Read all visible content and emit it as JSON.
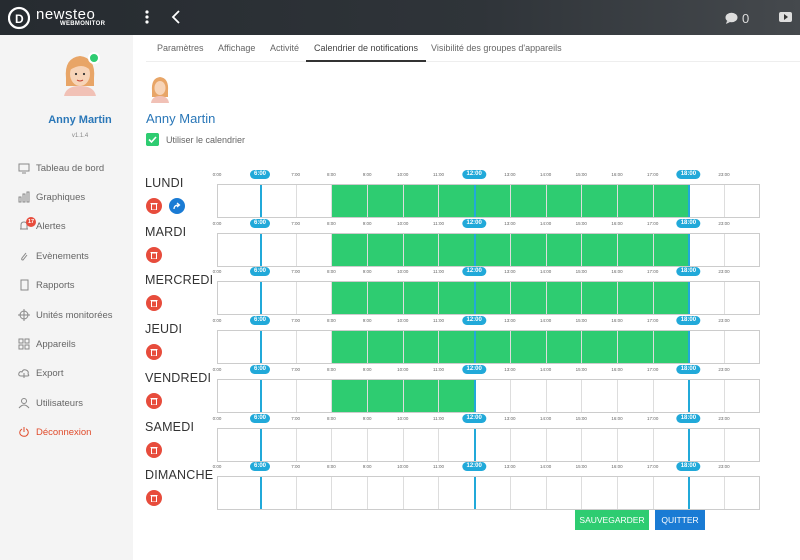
{
  "header": {
    "brand": "newsteo",
    "brand_sub": "WEBMONITOR",
    "chat_count": "0"
  },
  "sidebar": {
    "user_name": "Anny Martin",
    "version": "v1.1.4",
    "alert_badge": "17",
    "items": [
      {
        "label": "Tableau de bord",
        "icon": "monitor-icon"
      },
      {
        "label": "Graphiques",
        "icon": "bar-chart-icon"
      },
      {
        "label": "Alertes",
        "icon": "bell-icon"
      },
      {
        "label": "Evènements",
        "icon": "paperclip-icon"
      },
      {
        "label": "Rapports",
        "icon": "document-icon"
      },
      {
        "label": "Unités monitorées",
        "icon": "crosshair-icon"
      },
      {
        "label": "Appareils",
        "icon": "grid-icon"
      },
      {
        "label": "Export",
        "icon": "cloud-upload-icon"
      },
      {
        "label": "Utilisateurs",
        "icon": "user-icon"
      },
      {
        "label": "Déconnexion",
        "icon": "power-icon"
      }
    ]
  },
  "tabs": [
    {
      "label": "Paramètres",
      "active": false
    },
    {
      "label": "Affichage",
      "active": false
    },
    {
      "label": "Activité",
      "active": false
    },
    {
      "label": "Calendrier de notifications",
      "active": true
    },
    {
      "label": "Visibilité des groupes d'appareils",
      "active": false
    }
  ],
  "profile": {
    "name": "Anny Martin",
    "use_calendar_label": "Utiliser le calendrier",
    "use_calendar_checked": true
  },
  "calendar": {
    "hours": [
      "0:00",
      "6:00",
      "7:00",
      "8:00",
      "9:00",
      "10:00",
      "11:00",
      "12:00",
      "13:00",
      "14:00",
      "15:00",
      "16:00",
      "17:00",
      "18:00",
      "23:00"
    ],
    "highlight_hours": [
      "6:00",
      "12:00",
      "18:00"
    ],
    "days": [
      {
        "name": "LUNDI",
        "start_hour": 8,
        "end_hour": 18,
        "copyable": true
      },
      {
        "name": "MARDI",
        "start_hour": 8,
        "end_hour": 18,
        "copyable": false
      },
      {
        "name": "MERCREDI",
        "start_hour": 8,
        "end_hour": 18,
        "copyable": false
      },
      {
        "name": "JEUDI",
        "start_hour": 8,
        "end_hour": 18,
        "copyable": false
      },
      {
        "name": "VENDREDI",
        "start_hour": 8,
        "end_hour": 12,
        "copyable": false
      },
      {
        "name": "SAMEDI",
        "start_hour": null,
        "end_hour": null,
        "copyable": false
      },
      {
        "name": "DIMANCHE",
        "start_hour": null,
        "end_hour": null,
        "copyable": false
      }
    ]
  },
  "actions": {
    "save_label": "SAUVEGARDER",
    "quit_label": "QUITTER"
  },
  "colors": {
    "accent": "#21a9d9",
    "active_fill": "#2ecc71",
    "primary": "#1a7bd4",
    "danger": "#e74c3c"
  }
}
